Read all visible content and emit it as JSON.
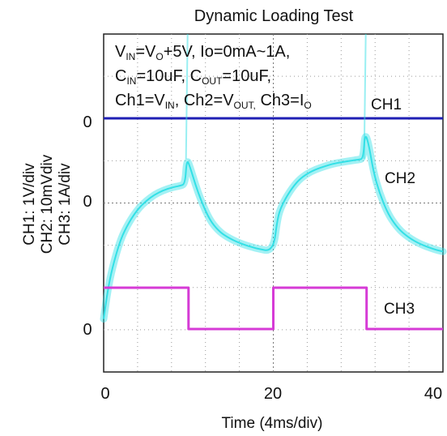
{
  "chart_data": {
    "type": "line",
    "title": "Dynamic Loading Test",
    "xlabel": "Time (4ms/div)",
    "ylabel_lines": [
      "CH1: 1V/div",
      "CH2: 10mVdiv",
      "CH3: 1A/div"
    ],
    "xlim": [
      0,
      40
    ],
    "x_ticks": [
      "0",
      "20",
      "40"
    ],
    "ground_markers": [
      "0",
      "0",
      "0"
    ],
    "grid": true,
    "conditions": {
      "line1": {
        "v": "V",
        "vin_sub": "IN",
        "eq": "=V",
        "vo_sub": "O",
        "rest": "+5V, Io=0mA~1A,"
      },
      "line2": {
        "c1": "C",
        "cin_sub": "IN",
        "mid": "=10uF, C",
        "cout_sub": "OUT",
        "rest": "=10uF,"
      },
      "line3": {
        "a": "Ch1=V",
        "a_sub": "IN",
        "b": ", Ch2=V",
        "b_sub": "OUT,",
        "c": " Ch3=I",
        "c_sub": "O"
      }
    },
    "series": [
      {
        "name": "CH1",
        "color": "#1f1fb4",
        "x": [
          0,
          40
        ],
        "y": [
          0,
          0
        ],
        "unit": "V"
      },
      {
        "name": "CH2",
        "color": "#33e0e6",
        "x": [
          0,
          0.5,
          1,
          2,
          3,
          4,
          5,
          6,
          7,
          8,
          9,
          9.6,
          9.8,
          10.2,
          10.8,
          11.5,
          12.5,
          13.5,
          14.5,
          16,
          18,
          20,
          20.5,
          21,
          22,
          23,
          24,
          25,
          26,
          27,
          28,
          29,
          30,
          30.6,
          30.8,
          31.2,
          31.8,
          32.5,
          33.5,
          34.5,
          35.5,
          37,
          39,
          40
        ],
        "y": [
          -28,
          -21,
          -16,
          -9,
          -5,
          -2,
          0,
          1.5,
          2.5,
          3.2,
          3.6,
          4,
          10,
          8,
          4,
          0,
          -4.5,
          -7,
          -8.5,
          -10,
          -11.3,
          -12,
          -4,
          -1,
          2.5,
          5,
          6.5,
          7.5,
          8.2,
          8.8,
          9.2,
          9.5,
          9.8,
          10,
          16,
          14,
          7,
          2,
          -3,
          -6,
          -8,
          -10,
          -11.5,
          -12
        ],
        "unit": "mV"
      },
      {
        "name": "CH3",
        "color": "#d63bd6",
        "x": [
          0,
          10,
          10,
          20,
          20,
          31,
          31,
          40
        ],
        "y": [
          1,
          1,
          0,
          0,
          1,
          1,
          0,
          0
        ],
        "unit": "A"
      }
    ],
    "channel_labels": [
      "CH1",
      "CH2",
      "CH3"
    ]
  }
}
